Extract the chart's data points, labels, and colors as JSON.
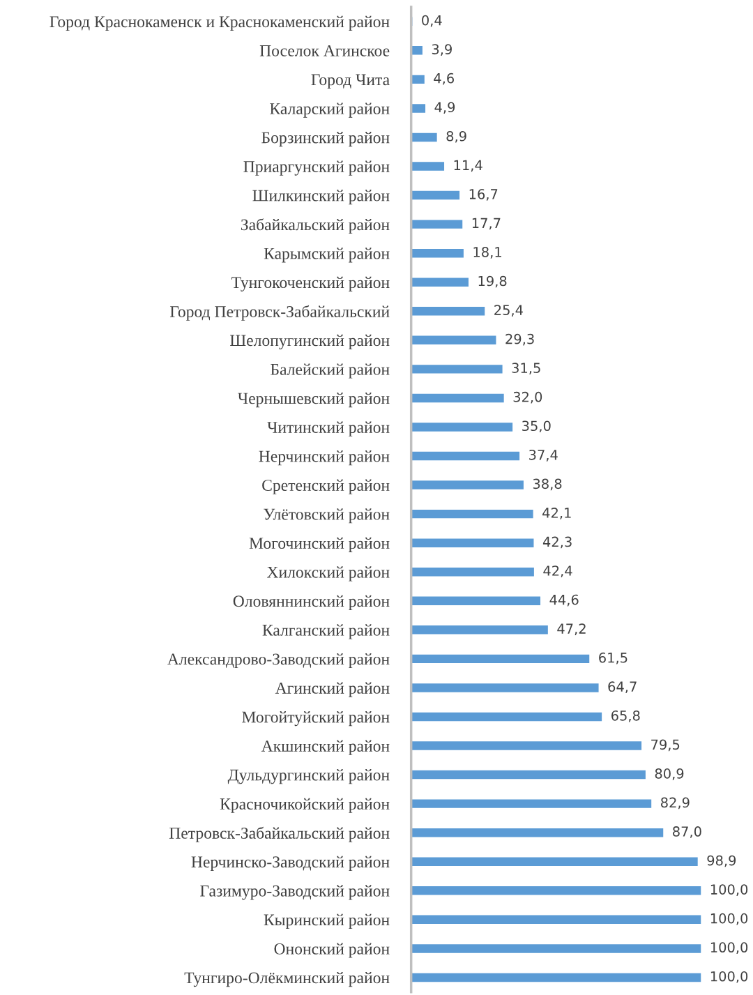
{
  "chart_data": {
    "type": "bar",
    "orientation": "horizontal",
    "color": "#5b9bd5",
    "categories": [
      "Город Краснокаменск и Краснокаменский район",
      "Поселок Агинское",
      "Город Чита",
      "Каларский район",
      "Борзинский район",
      "Приаргунский район",
      "Шилкинский район",
      "Забайкальский район",
      "Карымский район",
      "Тунгокоченский район",
      "Город Петровск-Забайкальский",
      "Шелопугинский район",
      "Балейский район",
      "Чернышевский район",
      "Читинский район",
      "Нерчинский район",
      "Сретенский район",
      "Улётовский район",
      "Могочинский район",
      "Хилокский район",
      "Оловяннинский район",
      "Калганский район",
      "Александрово-Заводский район",
      "Агинский район",
      "Могойтуйский район",
      "Акшинский район",
      "Дульдургинский район",
      "Красночикойский район",
      "Петровск-Забайкальский район",
      "Нерчинско-Заводский район",
      "Газимуро-Заводский район",
      "Кыринский район",
      "Ононский район",
      "Тунгиро-Олёкминский район"
    ],
    "values": [
      0.4,
      3.9,
      4.6,
      4.9,
      8.9,
      11.4,
      16.7,
      17.7,
      18.1,
      19.8,
      25.4,
      29.3,
      31.5,
      32.0,
      35.0,
      37.4,
      38.8,
      42.1,
      42.3,
      42.4,
      44.6,
      47.2,
      61.5,
      64.7,
      65.8,
      79.5,
      80.9,
      82.9,
      87.0,
      98.9,
      100.0,
      100.0,
      100.0,
      100.0
    ],
    "value_labels": [
      "0,4",
      "3,9",
      "4,6",
      "4,9",
      "8,9",
      "11,4",
      "16,7",
      "17,7",
      "18,1",
      "19,8",
      "25,4",
      "29,3",
      "31,5",
      "32,0",
      "35,0",
      "37,4",
      "38,8",
      "42,1",
      "42,3",
      "42,4",
      "44,6",
      "47,2",
      "61,5",
      "64,7",
      "65,8",
      "79,5",
      "80,9",
      "82,9",
      "87,0",
      "98,9",
      "100,0",
      "100,0",
      "100,0",
      "100,0"
    ]
  }
}
